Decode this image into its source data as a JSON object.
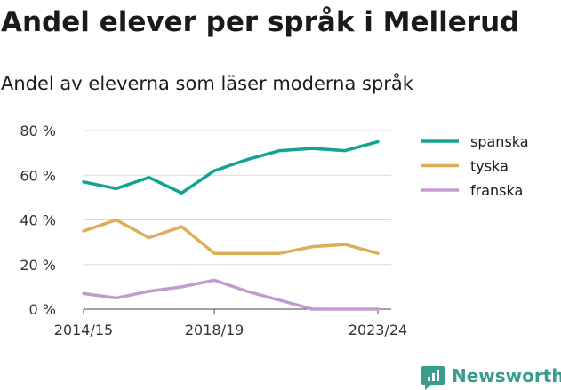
{
  "title": "Andel elever per språk i Mellerud",
  "subtitle": "Andel av eleverna som läser moderna språk",
  "brand": {
    "name": "Newsworthy",
    "color": "#3a9c8e"
  },
  "chart_data": {
    "type": "line",
    "categories": [
      "2014/15",
      "2015/16",
      "2016/17",
      "2017/18",
      "2018/19",
      "2019/20",
      "2020/21",
      "2021/22",
      "2022/23",
      "2023/24"
    ],
    "series": [
      {
        "name": "spanska",
        "color": "#13a391",
        "values": [
          57,
          54,
          59,
          52,
          62,
          67,
          71,
          72,
          71,
          75
        ]
      },
      {
        "name": "tyska",
        "color": "#dcae58",
        "values": [
          35,
          40,
          32,
          37,
          25,
          25,
          25,
          28,
          29,
          25
        ]
      },
      {
        "name": "franska",
        "color": "#c39bd0",
        "values": [
          7,
          5,
          8,
          10,
          13,
          8,
          4,
          0,
          0,
          0
        ]
      }
    ],
    "ylim": [
      0,
      80
    ],
    "yticks": [
      0,
      20,
      40,
      60,
      80
    ],
    "ytick_labels": [
      "0 %",
      "20 %",
      "40 %",
      "60 %",
      "80 %"
    ],
    "xtick_labels": [
      "2014/15",
      "2018/19",
      "2023/24"
    ],
    "xtick_indices": [
      0,
      4,
      9
    ],
    "grid": true,
    "legend_position": "right"
  }
}
